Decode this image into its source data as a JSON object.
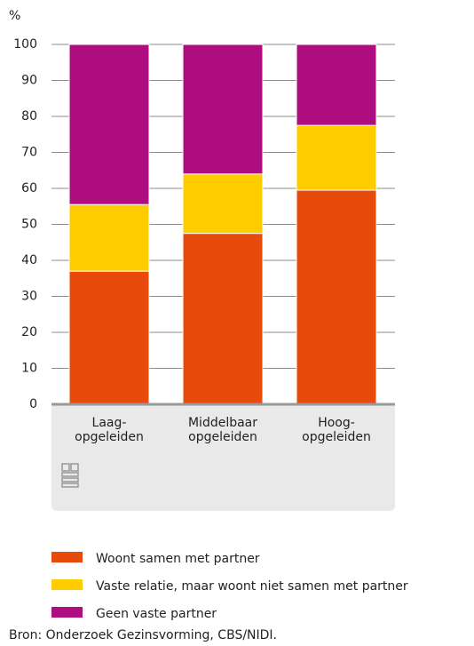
{
  "chart_data": {
    "type": "stacked_bar",
    "y_unit": "%",
    "categories": [
      "Laag-\nopgeleiden",
      "Middelbaar\nopgeleiden",
      "Hoog-\nopgeleiden"
    ],
    "series": [
      {
        "name": "Woont samen met partner",
        "color": "#e84a0c",
        "values": [
          37,
          47.5,
          59.5
        ]
      },
      {
        "name": "Vaste relatie, maar woont niet samen met partner",
        "color": "#ffcc00",
        "values": [
          18.5,
          16.5,
          18
        ]
      },
      {
        "name": "Geen vaste partner",
        "color": "#af0e80",
        "values": [
          44.5,
          36,
          22.5
        ]
      }
    ],
    "ylim": [
      0,
      100
    ],
    "yticks": [
      0,
      10,
      20,
      30,
      40,
      50,
      60,
      70,
      80,
      90,
      100
    ],
    "grid": true,
    "source": "Bron: Onderzoek Gezinsvorming, CBS/NIDI."
  }
}
